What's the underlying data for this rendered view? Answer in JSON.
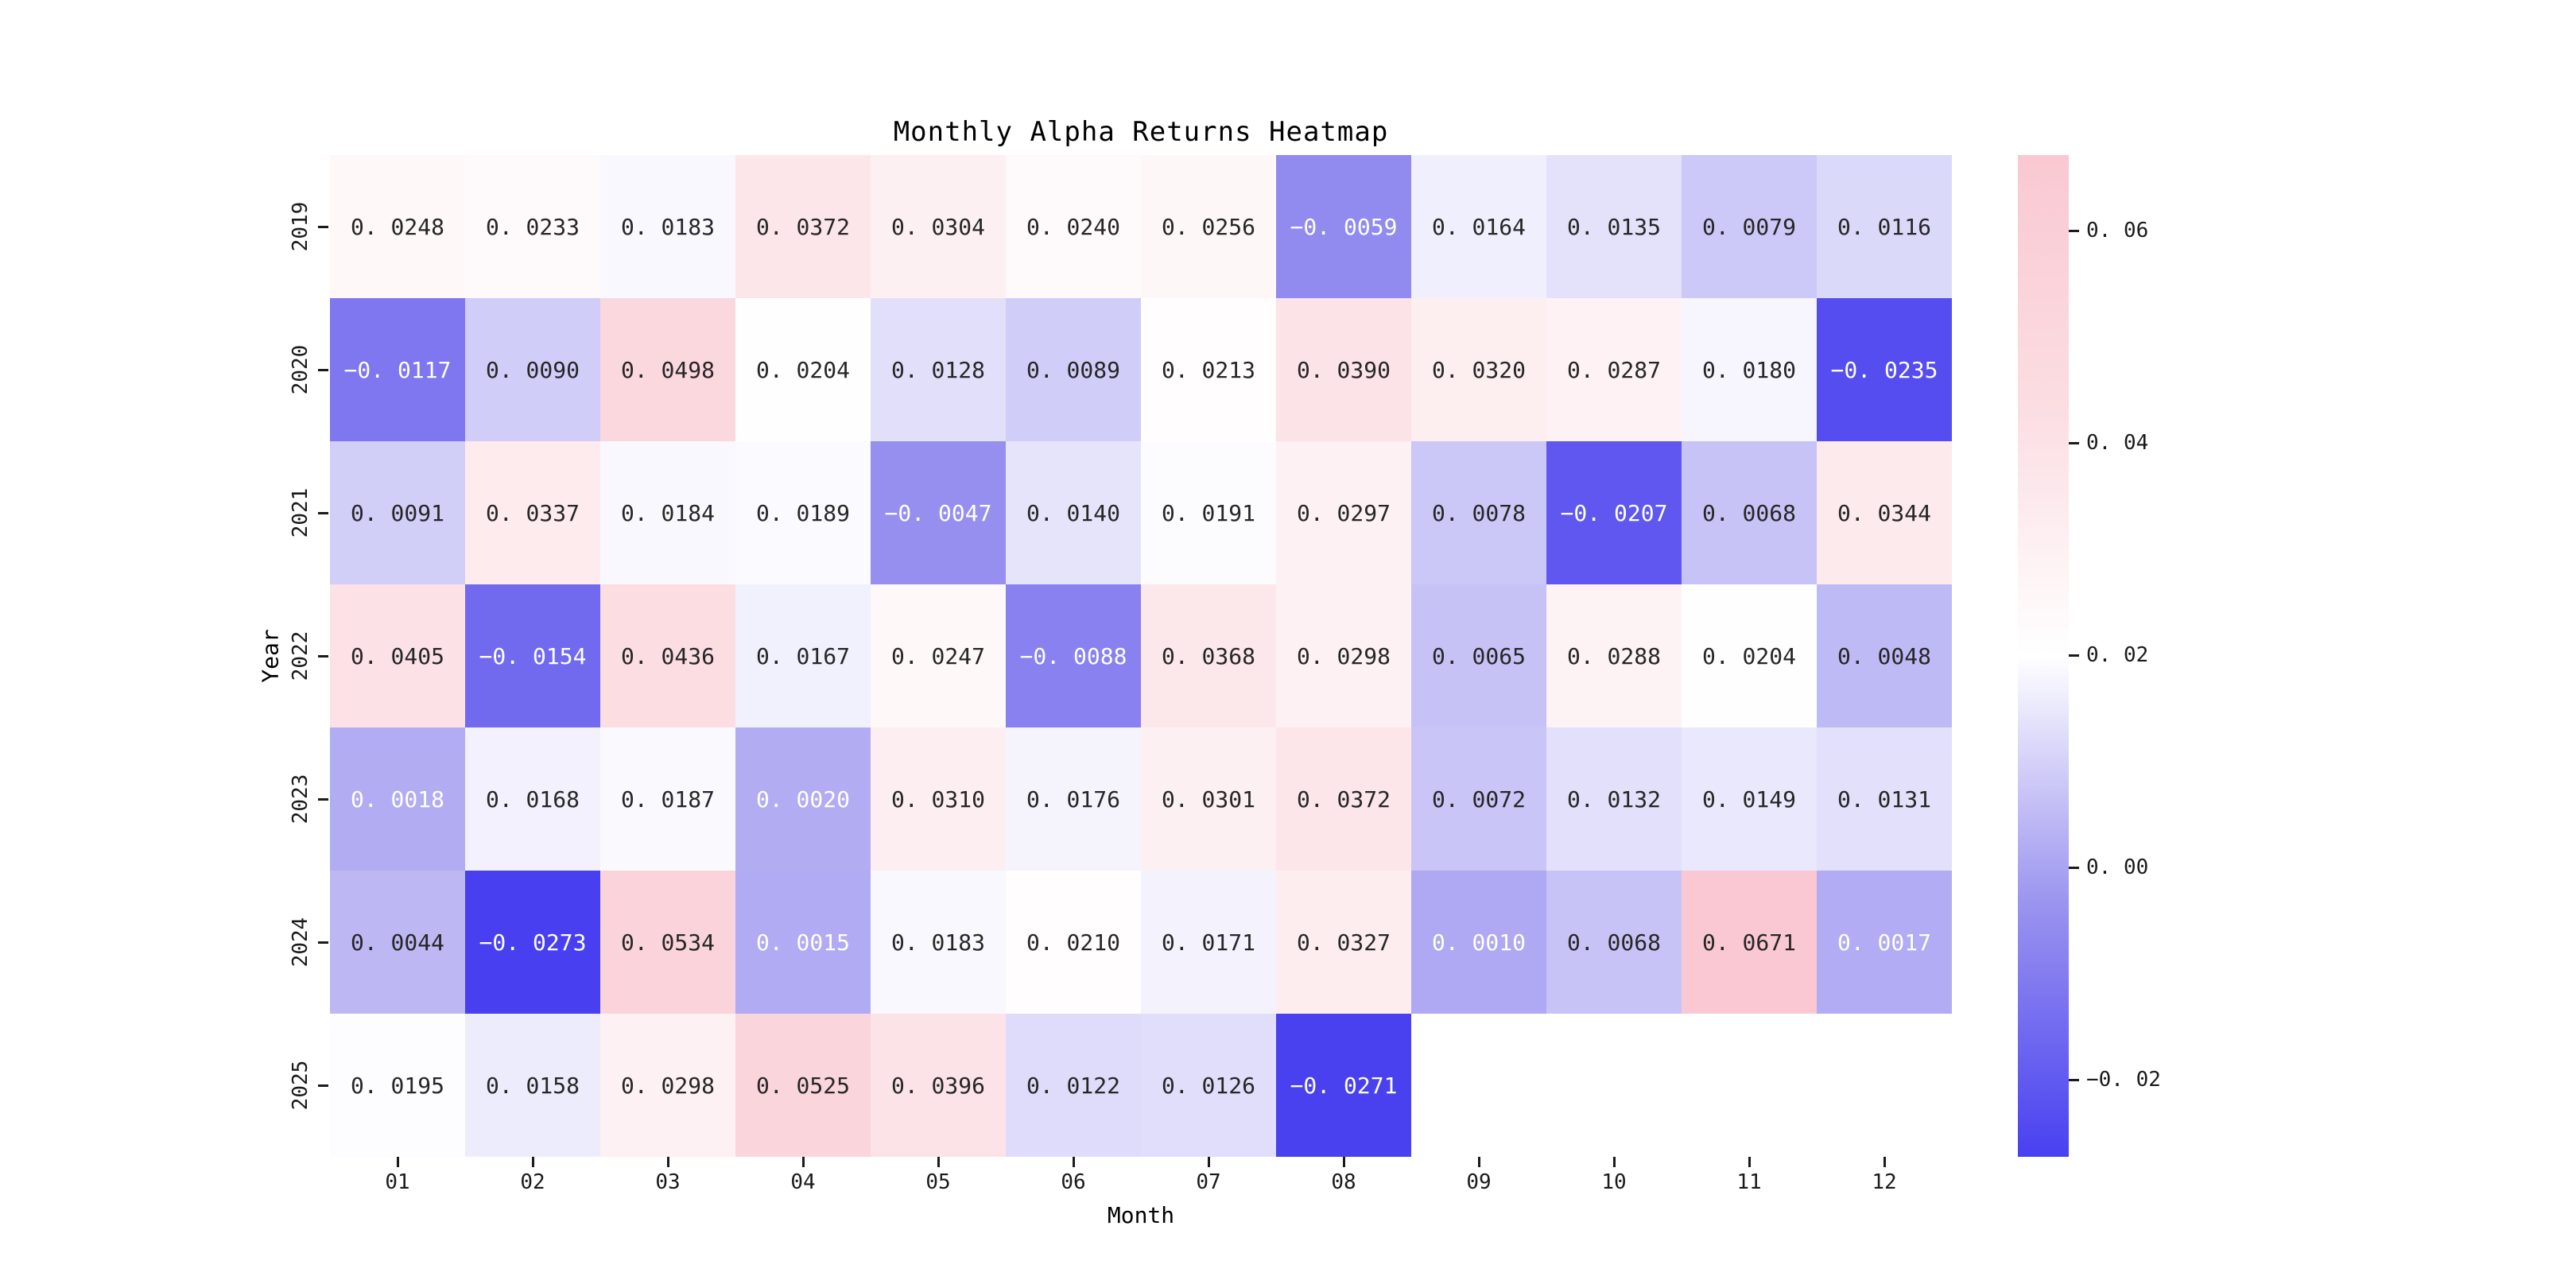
{
  "title": "Monthly Alpha Returns Heatmap",
  "chart_data": {
    "type": "heatmap",
    "title": "Monthly Alpha Returns Heatmap",
    "xlabel": "Month",
    "ylabel": "Year",
    "x_categories": [
      "01",
      "02",
      "03",
      "04",
      "05",
      "06",
      "07",
      "08",
      "09",
      "10",
      "11",
      "12"
    ],
    "y_categories": [
      "2019",
      "2020",
      "2021",
      "2022",
      "2023",
      "2024",
      "2025"
    ],
    "values": [
      [
        0.0248,
        0.0233,
        0.0183,
        0.0372,
        0.0304,
        0.024,
        0.0256,
        -0.0059,
        0.0164,
        0.0135,
        0.0079,
        0.0116
      ],
      [
        -0.0117,
        0.009,
        0.0498,
        0.0204,
        0.0128,
        0.0089,
        0.0213,
        0.039,
        0.032,
        0.0287,
        0.018,
        -0.0235
      ],
      [
        0.0091,
        0.0337,
        0.0184,
        0.0189,
        -0.0047,
        0.014,
        0.0191,
        0.0297,
        0.0078,
        -0.0207,
        0.0068,
        0.0344
      ],
      [
        0.0405,
        -0.0154,
        0.0436,
        0.0167,
        0.0247,
        -0.0088,
        0.0368,
        0.0298,
        0.0065,
        0.0288,
        0.0204,
        0.0048
      ],
      [
        0.0018,
        0.0168,
        0.0187,
        0.002,
        0.031,
        0.0176,
        0.0301,
        0.0372,
        0.0072,
        0.0132,
        0.0149,
        0.0131
      ],
      [
        0.0044,
        -0.0273,
        0.0534,
        0.0015,
        0.0183,
        0.021,
        0.0171,
        0.0327,
        0.001,
        0.0068,
        0.0671,
        0.0017
      ],
      [
        0.0195,
        0.0158,
        0.0298,
        0.0525,
        0.0396,
        0.0122,
        0.0126,
        -0.0271,
        null,
        null,
        null,
        null
      ]
    ],
    "value_format_decimals": 4,
    "vmin": -0.0273,
    "vmax": 0.0671,
    "center": 0.0199,
    "grid": false,
    "legend_position": "right",
    "colormap": {
      "negative_stops": [
        "#FFFFFF",
        "#9A93EF",
        "#4840F0"
      ],
      "positive_stops": [
        "#FFFFFF",
        "#FBDDE2",
        "#FAC8D2"
      ],
      "annot_dark_text": "#262626",
      "annot_light_text": "#FFFFFF"
    },
    "colorbar": {
      "tick_labels": [
        "0. 06",
        "0. 04",
        "0. 02",
        "0. 00",
        "−0. 02"
      ],
      "tick_values": [
        0.06,
        0.04,
        0.02,
        0.0,
        -0.02
      ]
    }
  }
}
